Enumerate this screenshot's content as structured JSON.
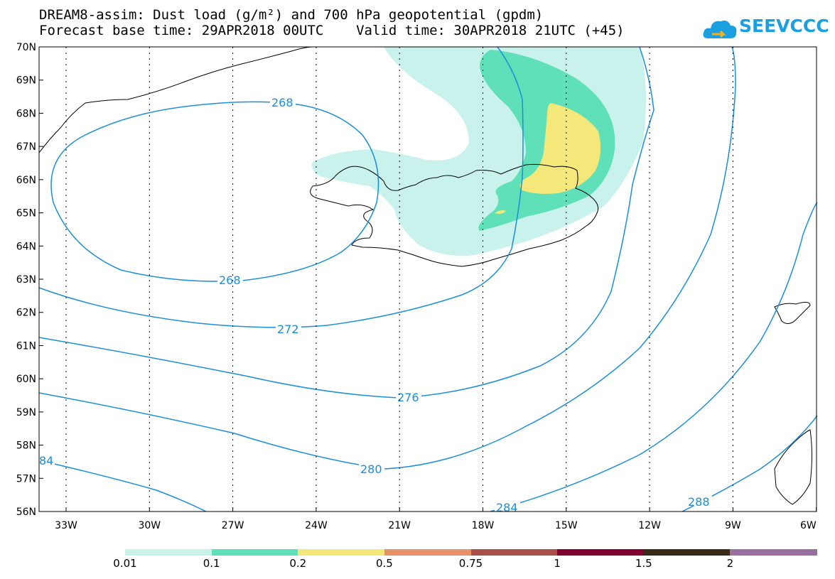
{
  "header": {
    "title_line1": "DREAM8-assim: Dust load (g/m²) and 700 hPa geopotential (gpdm)",
    "title_line2": "Forecast base time: 29APR2018 00UTC    Valid time: 30APR2018 21UTC (+45)"
  },
  "logo": {
    "text": "SEEVCCC",
    "icon": "cloud-logo-icon",
    "color": "#1aa0e0"
  },
  "map": {
    "lat_labels": [
      "70N",
      "69N",
      "68N",
      "67N",
      "66N",
      "65N",
      "64N",
      "63N",
      "62N",
      "61N",
      "60N",
      "59N",
      "58N",
      "57N",
      "56N"
    ],
    "lon_labels": [
      "33W",
      "30W",
      "27W",
      "24W",
      "21W",
      "18W",
      "15W",
      "12W",
      "9W",
      "6W"
    ],
    "contour_labels": [
      "268",
      "268",
      "272",
      "276",
      "280",
      "284",
      "288",
      "84"
    ],
    "contour_color": "#1a8fd8"
  },
  "colorbar": {
    "colors": [
      "#c8f2eb",
      "#5fe0b8",
      "#f5e87a",
      "#e8906a",
      "#a85048",
      "#800030",
      "#3a2818",
      "#9870a0"
    ],
    "labels": [
      "0.01",
      "0.1",
      "0.2",
      "0.5",
      "0.75",
      "1",
      "1.5",
      "2"
    ]
  }
}
